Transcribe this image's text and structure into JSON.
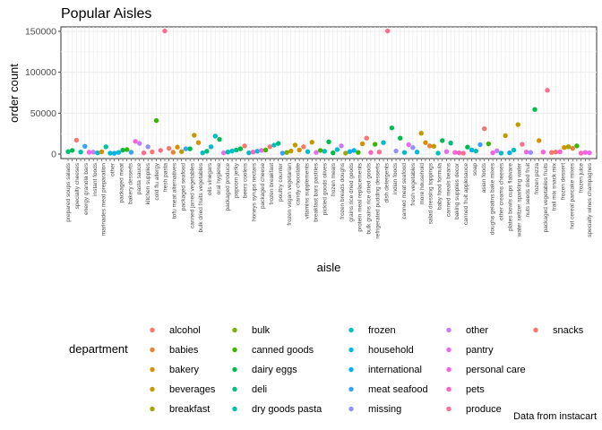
{
  "chart_data": {
    "type": "scatter",
    "title": "Popular Aisles",
    "xlabel": "aisle",
    "ylabel": "order count",
    "caption": "Data from instacart",
    "ylim": [
      0,
      155000
    ],
    "yticks": [
      0,
      50000,
      100000,
      150000
    ],
    "ytick_labels": [
      "0",
      "50000",
      "100000",
      "150000"
    ],
    "grid": true,
    "legend": {
      "title": "department",
      "placement": "bottom"
    },
    "series": [
      {
        "name": "alcohol",
        "color": "#F8766D"
      },
      {
        "name": "babies",
        "color": "#EA8331"
      },
      {
        "name": "bakery",
        "color": "#D89000"
      },
      {
        "name": "beverages",
        "color": "#C09B00"
      },
      {
        "name": "breakfast",
        "color": "#A3A500"
      },
      {
        "name": "bulk",
        "color": "#7CAE00"
      },
      {
        "name": "canned goods",
        "color": "#39B600"
      },
      {
        "name": "dairy eggs",
        "color": "#00BB4E"
      },
      {
        "name": "deli",
        "color": "#00BF7D"
      },
      {
        "name": "dry goods pasta",
        "color": "#00C1A3"
      },
      {
        "name": "frozen",
        "color": "#00BFC4"
      },
      {
        "name": "household",
        "color": "#00BAE0"
      },
      {
        "name": "international",
        "color": "#00B0F6"
      },
      {
        "name": "meat seafood",
        "color": "#35A2FF"
      },
      {
        "name": "missing",
        "color": "#9590FF"
      },
      {
        "name": "other",
        "color": "#C77CFF"
      },
      {
        "name": "pantry",
        "color": "#E76BF3"
      },
      {
        "name": "personal care",
        "color": "#FA62DB"
      },
      {
        "name": "pets",
        "color": "#FF62BC"
      },
      {
        "name": "produce",
        "color": "#FF6C91"
      },
      {
        "name": "snacks",
        "color": "#F8766D"
      }
    ],
    "x_labels": [
      "prepared soups salads",
      "specialty cheeses",
      "energy granola bars",
      "instant foods",
      "marinades meat preparation",
      "other",
      "packaged meat",
      "bakery desserts",
      "pasta sauce",
      "kitchen supplies",
      "cold flu allergy",
      "fresh pasta",
      "tofu meat alternatives",
      "packaged seafood",
      "canned jarred vegetables",
      "bulk dried fruits vegetables",
      "oils vinegars",
      "oral hygiene",
      "packaged produce",
      "popcorn jerky",
      "beers coolers",
      "honeys syrups nectars",
      "packaged cheese",
      "frozen breakfast",
      "poultry counter",
      "frozen vegan vegetarian",
      "candy chocolate",
      "vitamins supplements",
      "breakfast bars pastries",
      "pickled goods olives",
      "frozen meals",
      "frozen breads doughs",
      "grains rice dried goods",
      "protein meal replacements",
      "bulk grains rice dried goods",
      "refrigerated pudding desserts",
      "dish detergents",
      "indian foods",
      "canned meat seafood",
      "fresh vegetables",
      "more household",
      "salad dressing toppings",
      "baby food formula",
      "canned meals beans",
      "baking supplies decor",
      "canned fruit applesauce",
      "soap",
      "asian foods",
      "doughs gelatins bake mixes",
      "other creams cheeses",
      "plates bowls cups flatware",
      "water seltzer sparkling water",
      "nuts seeds dried fruit",
      "frozen pizza",
      "packaged vegetables fruits",
      "trail mix snack mix",
      "frozen dessert",
      "hot cereal pancake mixes",
      "frozen juice",
      "specialty wines champagnes"
    ],
    "points": [
      [
        1,
        3000,
        "deli"
      ],
      [
        2,
        4500,
        "dairy eggs"
      ],
      [
        3,
        17000,
        "snacks"
      ],
      [
        4,
        2500,
        "dry goods pasta"
      ],
      [
        5,
        9500,
        "meat seafood"
      ],
      [
        6,
        2200,
        "personal care"
      ],
      [
        7,
        2400,
        "other"
      ],
      [
        8,
        1500,
        "frozen"
      ],
      [
        9,
        2800,
        "bakery"
      ],
      [
        10,
        9000,
        "dry goods pasta"
      ],
      [
        11,
        1200,
        "frozen"
      ],
      [
        12,
        1000,
        "international"
      ],
      [
        13,
        2000,
        "household"
      ],
      [
        14,
        4800,
        "dairy eggs"
      ],
      [
        15,
        5500,
        "canned goods"
      ],
      [
        16,
        2200,
        "meat seafood"
      ],
      [
        17,
        15500,
        "personal care"
      ],
      [
        18,
        13000,
        "other"
      ],
      [
        19,
        1500,
        "produce"
      ],
      [
        20,
        9000,
        "missing"
      ],
      [
        21,
        2700,
        "snacks"
      ],
      [
        22,
        41000,
        "canned goods"
      ],
      [
        23,
        4500,
        "produce"
      ],
      [
        24,
        150500,
        "produce"
      ],
      [
        25,
        7000,
        "snacks"
      ],
      [
        26,
        2200,
        "babies"
      ],
      [
        27,
        8500,
        "bakery"
      ],
      [
        28,
        3000,
        "beverages"
      ],
      [
        29,
        6500,
        "meat seafood"
      ],
      [
        30,
        6500,
        "dairy eggs"
      ],
      [
        31,
        23000,
        "beverages"
      ],
      [
        32,
        14000,
        "bakery"
      ],
      [
        33,
        1500,
        "frozen"
      ],
      [
        34,
        3500,
        "deli"
      ],
      [
        35,
        9000,
        "frozen"
      ],
      [
        36,
        22000,
        "frozen"
      ],
      [
        37,
        18000,
        "dairy eggs"
      ],
      [
        38,
        1500,
        "pantry"
      ],
      [
        39,
        2500,
        "dry goods pasta"
      ],
      [
        40,
        3800,
        "household"
      ],
      [
        41,
        5000,
        "deli"
      ],
      [
        42,
        6500,
        "dairy eggs"
      ],
      [
        43,
        10000,
        "snacks"
      ],
      [
        44,
        1500,
        "frozen"
      ],
      [
        45,
        2500,
        "pets"
      ],
      [
        46,
        3500,
        "household"
      ],
      [
        47,
        4500,
        "personal care"
      ],
      [
        48,
        5000,
        "canned goods"
      ],
      [
        49,
        9000,
        "snacks"
      ],
      [
        50,
        11000,
        "frozen"
      ],
      [
        51,
        13000,
        "deli"
      ],
      [
        52,
        1200,
        "meat seafood"
      ],
      [
        53,
        2000,
        "bulk"
      ],
      [
        54,
        3800,
        "beverages"
      ],
      [
        55,
        11000,
        "beverages"
      ],
      [
        56,
        5000,
        "bakery"
      ],
      [
        57,
        9000,
        "snacks"
      ],
      [
        58,
        3000,
        "frozen"
      ],
      [
        59,
        14500,
        "beverages"
      ],
      [
        60,
        2000,
        "pantry"
      ],
      [
        61,
        4500,
        "canned goods"
      ],
      [
        62,
        3500,
        "frozen"
      ],
      [
        63,
        15000,
        "dairy eggs"
      ],
      [
        64,
        1500,
        "dairy eggs"
      ],
      [
        65,
        5500,
        "frozen"
      ],
      [
        66,
        10000,
        "other"
      ],
      [
        67,
        1200,
        "breakfast"
      ],
      [
        68,
        3000,
        "international"
      ],
      [
        69,
        4500,
        "international"
      ],
      [
        70,
        2000,
        "canned goods"
      ],
      [
        71,
        12500,
        "bakery"
      ],
      [
        72,
        19500,
        "snacks"
      ],
      [
        73,
        2000,
        "pets"
      ],
      [
        74,
        12000,
        "canned goods"
      ],
      [
        75,
        2500,
        "produce"
      ],
      [
        76,
        14000,
        "frozen"
      ],
      [
        77,
        150500,
        "produce"
      ],
      [
        78,
        32000,
        "dairy eggs"
      ],
      [
        79,
        3800,
        "missing"
      ],
      [
        80,
        19500,
        "dairy eggs"
      ],
      [
        81,
        2000,
        "frozen"
      ],
      [
        82,
        11500,
        "pantry"
      ],
      [
        83,
        8000,
        "missing"
      ],
      [
        84,
        2500,
        "household"
      ],
      [
        85,
        25500,
        "beverages"
      ],
      [
        86,
        14000,
        "bakery"
      ],
      [
        87,
        10000,
        "babies"
      ],
      [
        88,
        9500,
        "beverages"
      ],
      [
        89,
        1200,
        "frozen"
      ],
      [
        90,
        16500,
        "dairy eggs"
      ],
      [
        91,
        3000,
        "pantry"
      ],
      [
        92,
        13500,
        "deli"
      ],
      [
        93,
        2000,
        "personal care"
      ],
      [
        94,
        1500,
        "pets"
      ],
      [
        95,
        1200,
        "produce"
      ],
      [
        96,
        8500,
        "dairy eggs"
      ],
      [
        97,
        5000,
        "international"
      ],
      [
        98,
        3800,
        "dry goods pasta"
      ],
      [
        99,
        11500,
        "meat seafood"
      ],
      [
        100,
        31000,
        "snacks"
      ],
      [
        101,
        12500,
        "canned goods"
      ],
      [
        102,
        1500,
        "personal care"
      ],
      [
        103,
        4000,
        "other"
      ],
      [
        104,
        1200,
        "frozen"
      ],
      [
        105,
        22500,
        "beverages"
      ],
      [
        106,
        1500,
        "international"
      ],
      [
        107,
        5000,
        "frozen"
      ],
      [
        108,
        36000,
        "beverages"
      ],
      [
        109,
        12000,
        "produce"
      ],
      [
        110,
        2500,
        "personal care"
      ],
      [
        111,
        2000,
        "missing"
      ],
      [
        112,
        54500,
        "dairy eggs"
      ],
      [
        113,
        16500,
        "bakery"
      ],
      [
        114,
        2500,
        "personal care"
      ],
      [
        115,
        78000,
        "produce"
      ],
      [
        116,
        2000,
        "snacks"
      ],
      [
        117,
        2500,
        "snacks"
      ],
      [
        118,
        2800,
        "personal care"
      ],
      [
        119,
        8000,
        "bakery"
      ],
      [
        120,
        9000,
        "breakfast"
      ],
      [
        121,
        7000,
        "babies"
      ],
      [
        122,
        10000,
        "canned goods"
      ],
      [
        123,
        1200,
        "pets"
      ],
      [
        124,
        2000,
        "personal care"
      ],
      [
        125,
        1500,
        "pantry"
      ]
    ]
  }
}
